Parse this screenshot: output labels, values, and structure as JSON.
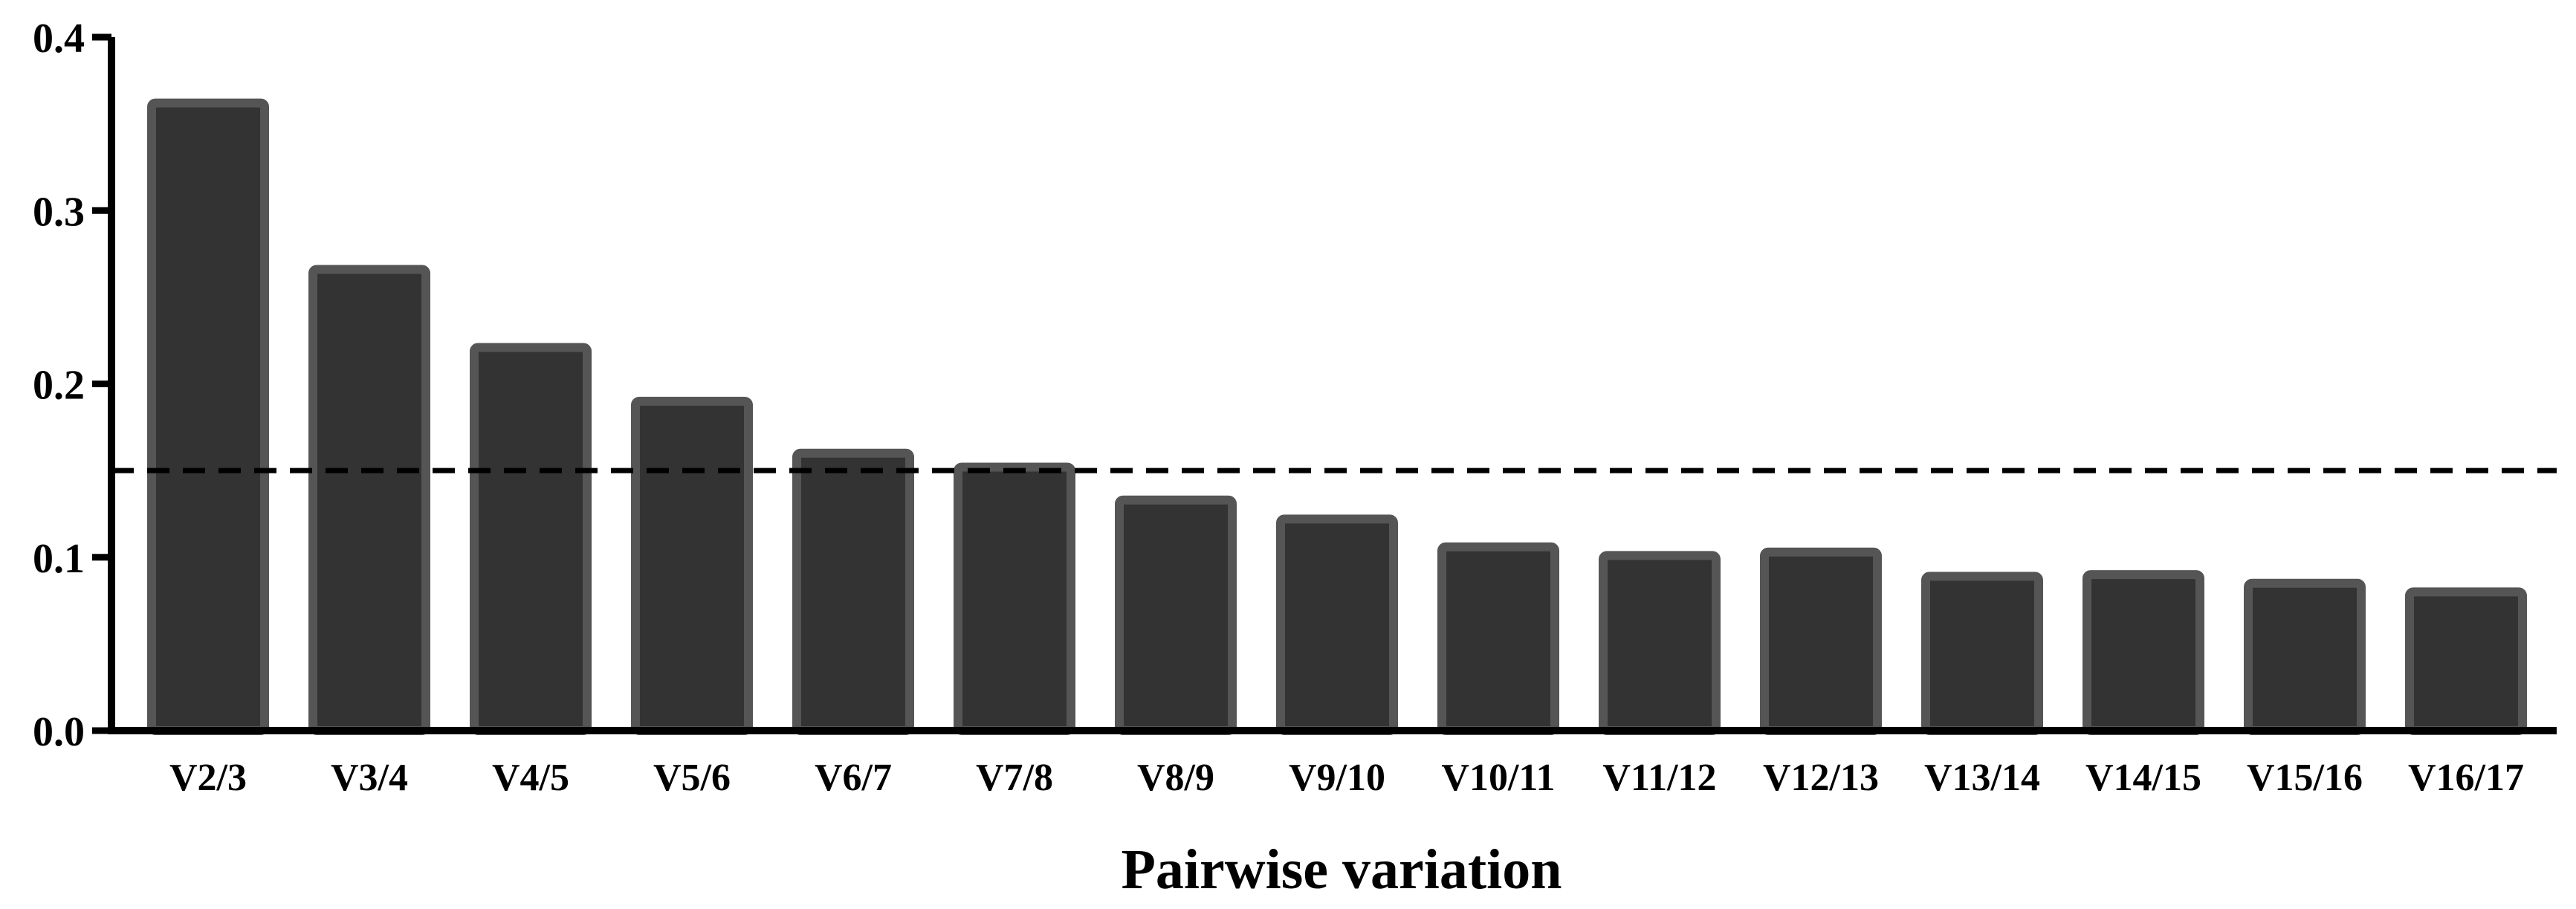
{
  "chart_data": {
    "type": "bar",
    "title": "",
    "xlabel": "Pairwise variation",
    "ylabel": "",
    "categories": [
      "V2/3",
      "V3/4",
      "V4/5",
      "V5/6",
      "V6/7",
      "V7/8",
      "V8/9",
      "V9/10",
      "V10/11",
      "V11/12",
      "V12/13",
      "V13/14",
      "V14/15",
      "V15/16",
      "V16/17"
    ],
    "values": [
      0.362,
      0.266,
      0.221,
      0.19,
      0.16,
      0.152,
      0.133,
      0.122,
      0.106,
      0.101,
      0.103,
      0.089,
      0.09,
      0.085,
      0.08
    ],
    "ylim": [
      0,
      0.4
    ],
    "yticks": [
      0.0,
      0.1,
      0.2,
      0.3,
      0.4
    ],
    "ytick_labels": [
      "0.0",
      "0.1",
      "0.2",
      "0.3",
      "0.4"
    ],
    "threshold": 0.15,
    "grid": false,
    "bar_color": "#333333",
    "bar_edge_color": "#555555"
  }
}
